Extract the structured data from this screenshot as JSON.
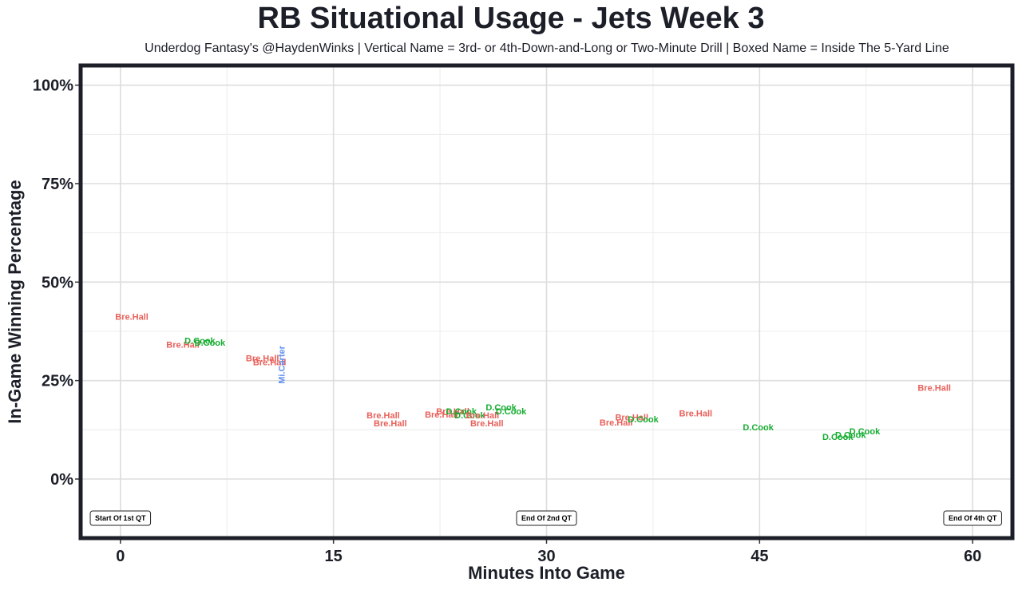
{
  "chart_data": {
    "type": "scatter",
    "title": "RB Situational Usage - Jets Week 3",
    "subtitle": "Underdog Fantasy's @HaydenWinks | Vertical Name = 3rd- or 4th-Down-and-Long or Two-Minute Drill | Boxed Name = Inside The 5-Yard Line",
    "xlabel": "Minutes Into Game",
    "ylabel": "In-Game Winning Percentage",
    "xlim": [
      -2.8,
      62.8
    ],
    "ylim": [
      -15,
      105
    ],
    "x_ticks": [
      0,
      15,
      30,
      45,
      60
    ],
    "x_tick_labels": [
      "0",
      "15",
      "30",
      "45",
      "60"
    ],
    "y_ticks": [
      0,
      25,
      50,
      75,
      100
    ],
    "y_tick_labels": [
      "0%",
      "25%",
      "50%",
      "75%",
      "100%"
    ],
    "grid": true,
    "colors": {
      "Bre.Hall": "#e8605a",
      "D.Cook": "#16ad31",
      "Mi.Carter": "#5f8ff0"
    },
    "points": [
      {
        "player": "Bre.Hall",
        "x": 0.8,
        "y": 41,
        "vertical": false
      },
      {
        "player": "Bre.Hall",
        "x": 4.4,
        "y": 34,
        "vertical": false
      },
      {
        "player": "D.Cook",
        "x": 5.6,
        "y": 35,
        "vertical": false
      },
      {
        "player": "D.Cook",
        "x": 6.3,
        "y": 34.5,
        "vertical": false
      },
      {
        "player": "Bre.Hall",
        "x": 10.0,
        "y": 30.5,
        "vertical": false
      },
      {
        "player": "Bre.Hall",
        "x": 10.5,
        "y": 29.5,
        "vertical": false
      },
      {
        "player": "Mi.Carter",
        "x": 11.4,
        "y": 29,
        "vertical": true
      },
      {
        "player": "Bre.Hall",
        "x": 18.5,
        "y": 16,
        "vertical": false
      },
      {
        "player": "Bre.Hall",
        "x": 19.0,
        "y": 14,
        "vertical": false
      },
      {
        "player": "Bre.Hall",
        "x": 22.6,
        "y": 16.2,
        "vertical": false
      },
      {
        "player": "Bre.Hall",
        "x": 23.4,
        "y": 17,
        "vertical": false
      },
      {
        "player": "D.Cook",
        "x": 24.0,
        "y": 17,
        "vertical": false
      },
      {
        "player": "D.Cook",
        "x": 24.6,
        "y": 16,
        "vertical": false
      },
      {
        "player": "Bre.Hall",
        "x": 25.5,
        "y": 16,
        "vertical": false
      },
      {
        "player": "Bre.Hall",
        "x": 25.8,
        "y": 14,
        "vertical": false
      },
      {
        "player": "D.Cook",
        "x": 26.8,
        "y": 18,
        "vertical": false
      },
      {
        "player": "D.Cook",
        "x": 27.5,
        "y": 17,
        "vertical": false
      },
      {
        "player": "Bre.Hall",
        "x": 34.9,
        "y": 14.2,
        "vertical": false
      },
      {
        "player": "Bre.Hall",
        "x": 36.0,
        "y": 15.5,
        "vertical": false
      },
      {
        "player": "D.Cook",
        "x": 36.8,
        "y": 15,
        "vertical": false
      },
      {
        "player": "Bre.Hall",
        "x": 40.5,
        "y": 16.5,
        "vertical": false
      },
      {
        "player": "D.Cook",
        "x": 44.9,
        "y": 13,
        "vertical": false
      },
      {
        "player": "D.Cook",
        "x": 50.5,
        "y": 10.5,
        "vertical": false
      },
      {
        "player": "D.Cook",
        "x": 51.4,
        "y": 11,
        "vertical": false
      },
      {
        "player": "D.Cook",
        "x": 52.4,
        "y": 12,
        "vertical": false
      },
      {
        "player": "Bre.Hall",
        "x": 57.3,
        "y": 23,
        "vertical": false
      }
    ],
    "quarter_markers": [
      {
        "x": 0,
        "label": "Start Of 1st QT"
      },
      {
        "x": 30,
        "label": "End Of 2nd QT"
      },
      {
        "x": 60,
        "label": "End Of 4th QT"
      }
    ]
  }
}
